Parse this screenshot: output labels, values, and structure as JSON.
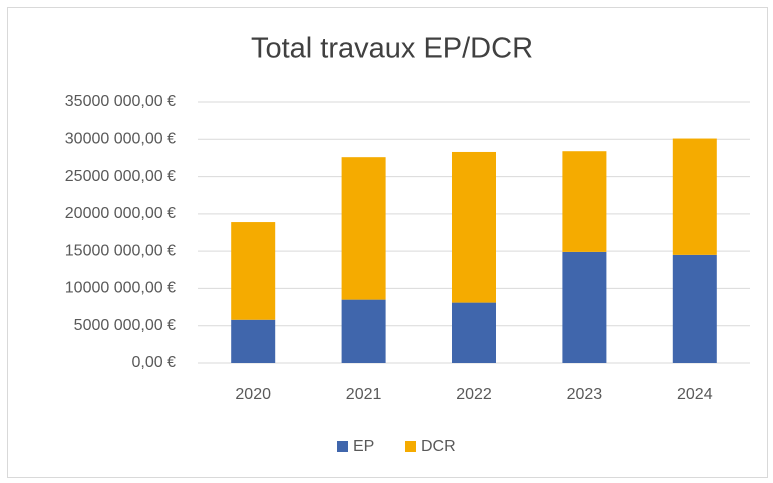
{
  "chart_data": {
    "type": "stacked-bar",
    "title": "Total travaux EP/DCR",
    "categories": [
      "2020",
      "2021",
      "2022",
      "2023",
      "2024"
    ],
    "series": [
      {
        "name": "EP",
        "color": "#4066ac",
        "values": [
          5800000,
          8500000,
          8100000,
          14900000,
          14500000
        ]
      },
      {
        "name": "DCR",
        "color": "#f5ab00",
        "values": [
          13100000,
          19100000,
          20200000,
          13500000,
          15600000
        ]
      }
    ],
    "ylim": [
      0,
      35000000
    ],
    "yticks": [
      {
        "value": 0,
        "label": "0,00 €"
      },
      {
        "value": 5000000,
        "label": "5000 000,00 €"
      },
      {
        "value": 10000000,
        "label": "10000 000,00 €"
      },
      {
        "value": 15000000,
        "label": "15000 000,00 €"
      },
      {
        "value": 20000000,
        "label": "20000 000,00 €"
      },
      {
        "value": 25000000,
        "label": "25000 000,00 €"
      },
      {
        "value": 30000000,
        "label": "30000 000,00 €"
      },
      {
        "value": 35000000,
        "label": "35000 000,00 €"
      }
    ],
    "grid": true,
    "legend": "bottom"
  }
}
